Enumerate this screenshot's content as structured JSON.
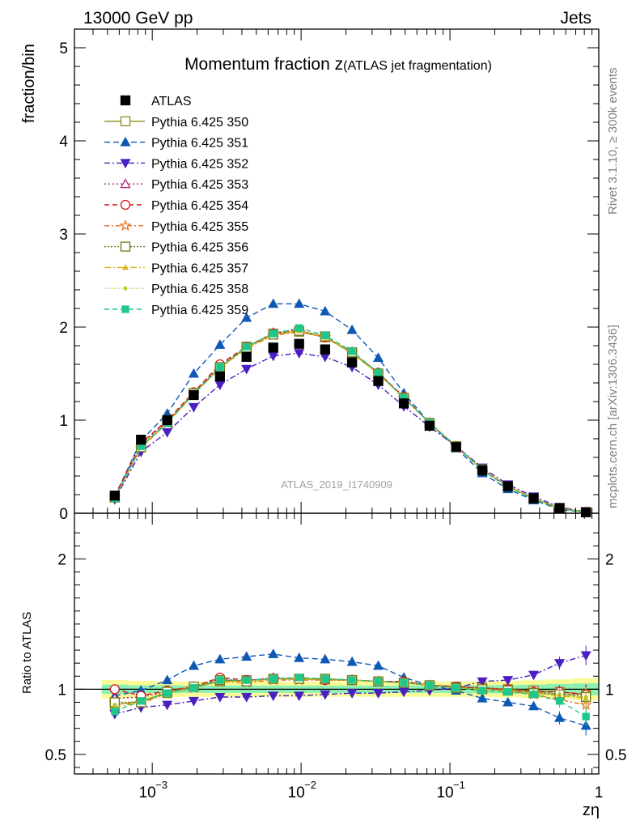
{
  "header": {
    "left": "13000 GeV pp",
    "right": "Jets"
  },
  "side": {
    "rivet": "Rivet 3.1.10, ≥ 300k events",
    "mcplots": "mcplots.cern.ch [arXiv:1306.3436]"
  },
  "chart_data": {
    "type": "scatter",
    "title_main": "Momentum fraction z",
    "title_sub": "(ATLAS jet fragmentation)",
    "analysis_label": "ATLAS_2019_I1740909",
    "xlabel": "zη",
    "ylabel": "fraction/bin",
    "ratio_ylabel": "Ratio to ATLAS",
    "x_scale": "log",
    "xlim": [
      0.0003,
      1
    ],
    "ylim": [
      0,
      5.2
    ],
    "ratio_ylim": [
      0.35,
      2.35
    ],
    "x_tick_labels": [
      "10",
      "10",
      "10",
      "1"
    ],
    "x_tick_exponents": [
      "−3",
      "−2",
      "−1",
      ""
    ],
    "y_tick_labels": [
      "0",
      "1",
      "2",
      "3",
      "4",
      "5"
    ],
    "ratio_tick_labels": [
      "0.5",
      "1",
      "2"
    ],
    "legend_position": "top-left",
    "x": [
      0.00056,
      0.00084,
      0.00126,
      0.0019,
      0.00285,
      0.0043,
      0.0065,
      0.0097,
      0.0145,
      0.022,
      0.033,
      0.049,
      0.073,
      0.11,
      0.165,
      0.245,
      0.365,
      0.545,
      0.82
    ],
    "data": {
      "name": "ATLAS",
      "values": [
        0.19,
        0.79,
        1.0,
        1.27,
        1.47,
        1.68,
        1.78,
        1.82,
        1.76,
        1.62,
        1.42,
        1.18,
        0.94,
        0.71,
        0.46,
        0.29,
        0.16,
        0.055,
        0.012
      ]
    },
    "series": [
      {
        "name": "Pythia 6.425 350",
        "color": "#8b8b1e",
        "dash": "",
        "marker": "open-square",
        "values": [
          0.17,
          0.71,
          0.98,
          1.29,
          1.56,
          1.79,
          1.93,
          1.95,
          1.89,
          1.72,
          1.5,
          1.24,
          0.97,
          0.72,
          0.47,
          0.29,
          0.16,
          0.054,
          0.012
        ],
        "ratio": [
          0.88,
          0.91,
          0.97,
          1.02,
          1.06,
          1.07,
          1.08,
          1.08,
          1.08,
          1.07,
          1.06,
          1.05,
          1.03,
          1.02,
          1.01,
          1.0,
          0.99,
          0.98,
          0.96
        ]
      },
      {
        "name": "Pythia 6.425 351",
        "color": "#0d58b4",
        "dash": "7,4",
        "marker": "filled-triangle-up",
        "values": [
          0.18,
          0.78,
          1.07,
          1.5,
          1.81,
          2.1,
          2.25,
          2.25,
          2.17,
          1.97,
          1.67,
          1.29,
          0.97,
          0.7,
          0.43,
          0.26,
          0.14,
          0.043,
          0.009
        ],
        "ratio": [
          0.95,
          0.99,
          1.07,
          1.18,
          1.23,
          1.25,
          1.27,
          1.24,
          1.23,
          1.21,
          1.18,
          1.09,
          1.03,
          0.99,
          0.93,
          0.9,
          0.87,
          0.78,
          0.72
        ]
      },
      {
        "name": "Pythia 6.425 352",
        "color": "#4b1fc0",
        "dash": "7,3,2,3",
        "marker": "filled-triangle-down",
        "values": [
          0.15,
          0.66,
          0.87,
          1.14,
          1.38,
          1.55,
          1.69,
          1.72,
          1.68,
          1.57,
          1.38,
          1.15,
          0.93,
          0.72,
          0.49,
          0.31,
          0.18,
          0.067,
          0.015
        ],
        "ratio": [
          0.81,
          0.86,
          0.88,
          0.91,
          0.94,
          0.94,
          0.95,
          0.95,
          0.96,
          0.97,
          0.97,
          0.98,
          0.99,
          1.01,
          1.06,
          1.07,
          1.11,
          1.2,
          1.26
        ]
      },
      {
        "name": "Pythia 6.425 353",
        "color": "#b4106e",
        "dash": "2,3",
        "marker": "open-triangle-up",
        "values": [
          0.18,
          0.74,
          0.99,
          1.29,
          1.59,
          1.78,
          1.94,
          1.97,
          1.89,
          1.73,
          1.51,
          1.25,
          0.97,
          0.72,
          0.47,
          0.29,
          0.16,
          0.054,
          0.012
        ],
        "ratio": [
          0.93,
          0.94,
          0.98,
          1.02,
          1.08,
          1.06,
          1.09,
          1.08,
          1.07,
          1.07,
          1.06,
          1.06,
          1.03,
          1.02,
          1.01,
          1.0,
          0.98,
          0.96,
          0.96
        ]
      },
      {
        "name": "Pythia 6.425 354",
        "color": "#d2111b",
        "dash": "6,4",
        "marker": "open-circle",
        "values": [
          0.19,
          0.75,
          1.0,
          1.3,
          1.6,
          1.79,
          1.93,
          1.96,
          1.89,
          1.73,
          1.51,
          1.25,
          0.97,
          0.72,
          0.47,
          0.29,
          0.16,
          0.054,
          0.012
        ],
        "ratio": [
          1.0,
          0.95,
          0.99,
          1.02,
          1.09,
          1.07,
          1.08,
          1.08,
          1.07,
          1.07,
          1.06,
          1.06,
          1.03,
          1.02,
          1.0,
          1.0,
          0.98,
          0.98,
          0.96
        ]
      },
      {
        "name": "Pythia 6.425 355",
        "color": "#ea6a10",
        "dash": "6,3,2,3",
        "marker": "open-star",
        "values": [
          0.17,
          0.7,
          0.97,
          1.28,
          1.56,
          1.77,
          1.91,
          1.95,
          1.89,
          1.73,
          1.5,
          1.24,
          0.97,
          0.72,
          0.47,
          0.29,
          0.16,
          0.051,
          0.011
        ],
        "ratio": [
          0.89,
          0.89,
          0.97,
          1.01,
          1.06,
          1.05,
          1.07,
          1.07,
          1.07,
          1.07,
          1.06,
          1.05,
          1.03,
          1.01,
          1.0,
          0.99,
          0.96,
          0.92,
          0.88
        ]
      },
      {
        "name": "Pythia 6.425 356",
        "color": "#6f7a16",
        "dash": "2,2",
        "marker": "open-square",
        "values": [
          0.17,
          0.71,
          0.98,
          1.29,
          1.57,
          1.78,
          1.92,
          1.96,
          1.9,
          1.73,
          1.5,
          1.24,
          0.97,
          0.72,
          0.47,
          0.29,
          0.16,
          0.053,
          0.011
        ],
        "ratio": [
          0.9,
          0.9,
          0.98,
          1.02,
          1.07,
          1.06,
          1.08,
          1.08,
          1.08,
          1.07,
          1.06,
          1.05,
          1.03,
          1.01,
          1.0,
          0.99,
          0.97,
          0.96,
          0.94
        ]
      },
      {
        "name": "Pythia 6.425 357",
        "color": "#d6b41a",
        "dash": "8,3,2,3",
        "marker": "small-triangle",
        "values": [
          0.16,
          0.71,
          0.97,
          1.28,
          1.56,
          1.78,
          1.92,
          1.96,
          1.89,
          1.73,
          1.5,
          1.24,
          0.97,
          0.72,
          0.47,
          0.29,
          0.16,
          0.052,
          0.011
        ],
        "ratio": [
          0.86,
          0.9,
          0.97,
          1.01,
          1.06,
          1.06,
          1.08,
          1.08,
          1.07,
          1.07,
          1.06,
          1.05,
          1.03,
          1.01,
          1.0,
          0.99,
          0.97,
          0.95,
          0.93
        ]
      },
      {
        "name": "Pythia 6.425 358",
        "color": "#b9c81e",
        "dash": "1,2",
        "marker": "dot",
        "values": [
          0.17,
          0.72,
          0.98,
          1.29,
          1.56,
          1.78,
          1.92,
          1.97,
          1.89,
          1.73,
          1.5,
          1.24,
          0.97,
          0.72,
          0.47,
          0.29,
          0.16,
          0.053,
          0.011
        ],
        "ratio": [
          0.88,
          0.91,
          0.98,
          1.02,
          1.06,
          1.06,
          1.08,
          1.08,
          1.07,
          1.07,
          1.06,
          1.05,
          1.03,
          1.01,
          1.0,
          0.99,
          0.98,
          0.96,
          0.94
        ]
      },
      {
        "name": "Pythia 6.425 359",
        "color": "#1ec88c",
        "dash": "6,4",
        "marker": "filled-square",
        "values": [
          0.16,
          0.72,
          0.97,
          1.28,
          1.57,
          1.79,
          1.93,
          1.99,
          1.91,
          1.74,
          1.51,
          1.24,
          0.97,
          0.72,
          0.46,
          0.28,
          0.15,
          0.05,
          0.009
        ],
        "ratio": [
          0.83,
          0.91,
          0.97,
          1.01,
          1.07,
          1.07,
          1.08,
          1.09,
          1.08,
          1.07,
          1.06,
          1.05,
          1.03,
          1.01,
          0.99,
          0.98,
          0.96,
          0.91,
          0.79
        ]
      }
    ],
    "ratio_band": {
      "inner_color": "#8cf0b4",
      "outer_color": "#fafa96",
      "inner_halfwidth": [
        0.035,
        0.03,
        0.03,
        0.028,
        0.028,
        0.028,
        0.028,
        0.028,
        0.028,
        0.028,
        0.028,
        0.028,
        0.028,
        0.028,
        0.03,
        0.032,
        0.035,
        0.04,
        0.045
      ],
      "outer_halfwidth": [
        0.07,
        0.065,
        0.06,
        0.058,
        0.058,
        0.058,
        0.058,
        0.058,
        0.058,
        0.058,
        0.058,
        0.058,
        0.058,
        0.058,
        0.06,
        0.063,
        0.068,
        0.075,
        0.085
      ]
    }
  }
}
